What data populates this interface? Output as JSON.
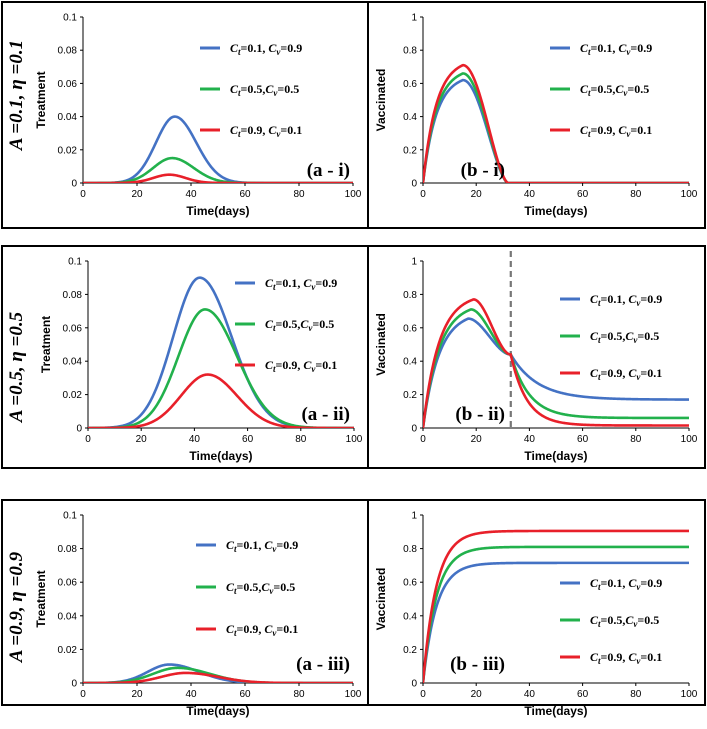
{
  "figure": {
    "colors": {
      "blue": "#4472c4",
      "green": "#22b14c",
      "red": "#e8202a",
      "dash": "#777777"
    },
    "rows": [
      {
        "label": "A =0.1, η =0.1"
      },
      {
        "label": "A =0.5, η =0.5"
      },
      {
        "label": "A =0.9, η =0.9"
      }
    ]
  },
  "chart_data": [
    {
      "id": "a-i",
      "type": "line",
      "tag": "(a - i)",
      "xlabel": "Time(days)",
      "ylabel": "Treatment",
      "xlim": [
        0,
        100
      ],
      "ylim": [
        0,
        0.1
      ],
      "xticks": [
        "0",
        "20",
        "40",
        "60",
        "80",
        "100"
      ],
      "yticks": [
        "0",
        "0.02",
        "0.04",
        "0.06",
        "0.08",
        "0.1"
      ],
      "series": [
        {
          "name": "Ct =0.1, Cv=0.9",
          "color": "blue",
          "shape": "bump",
          "peak": 0.04,
          "peak_x": 34,
          "sl": 7,
          "sr": 8
        },
        {
          "name": "Ct =0.5,Cv=0.5",
          "color": "green",
          "shape": "bump",
          "peak": 0.015,
          "peak_x": 33,
          "sl": 7,
          "sr": 8
        },
        {
          "name": "Ct =0.9, Cv =0.1",
          "color": "red",
          "shape": "bump",
          "peak": 0.005,
          "peak_x": 32,
          "sl": 6,
          "sr": 6
        }
      ],
      "legend": [
        {
          "ct": "=0.1, ",
          "cv": "=0.9"
        },
        {
          "ct": "=0.5,",
          "cv": "=0.5"
        },
        {
          "ct": "=0.9, ",
          "cv": "=0.1"
        }
      ]
    },
    {
      "id": "b-i",
      "type": "line",
      "tag": "(b - i)",
      "xlabel": "Time(days)",
      "ylabel": "Vaccinated",
      "xlim": [
        0,
        100
      ],
      "ylim": [
        0,
        1
      ],
      "xticks": [
        "0",
        "20",
        "40",
        "60",
        "80",
        "100"
      ],
      "yticks": [
        "0",
        "0.2",
        "0.4",
        "0.6",
        "0.8",
        "1"
      ],
      "series": [
        {
          "name": "Ct =0.1, Cv=0.9",
          "color": "blue",
          "shape": "rise_fall",
          "peak": 0.62,
          "peak_x": 15,
          "tau": 5,
          "end": 32
        },
        {
          "name": "Ct =0.5,Cv=0.5",
          "color": "green",
          "shape": "rise_fall",
          "peak": 0.66,
          "peak_x": 15,
          "tau": 5,
          "end": 32
        },
        {
          "name": "Ct =0.9, Cv =0.1",
          "color": "red",
          "shape": "rise_fall",
          "peak": 0.71,
          "peak_x": 15,
          "tau": 5,
          "end": 32
        }
      ],
      "legend": [
        {
          "ct": "=0.1, ",
          "cv": "=0.9"
        },
        {
          "ct": "=0.5,",
          "cv": "=0.5"
        },
        {
          "ct": "=0.9, ",
          "cv": "=0.1"
        }
      ]
    },
    {
      "id": "a-ii",
      "type": "line",
      "tag": "(a - ii)",
      "xlabel": "Time(days)",
      "ylabel": "Treatment",
      "xlim": [
        0,
        100
      ],
      "ylim": [
        0,
        0.1
      ],
      "xticks": [
        "0",
        "20",
        "40",
        "60",
        "80",
        "100"
      ],
      "yticks": [
        "0",
        "0.02",
        "0.04",
        "0.06",
        "0.08",
        "0.1"
      ],
      "series": [
        {
          "name": "Ct =0.1, Cv=0.9",
          "color": "blue",
          "shape": "bump",
          "peak": 0.09,
          "peak_x": 42,
          "sl": 10,
          "sr": 12
        },
        {
          "name": "Ct =0.5,Cv=0.5",
          "color": "green",
          "shape": "bump",
          "peak": 0.071,
          "peak_x": 44,
          "sl": 10,
          "sr": 12
        },
        {
          "name": "Ct =0.9, Cv =0.1",
          "color": "red",
          "shape": "bump",
          "peak": 0.032,
          "peak_x": 45,
          "sl": 10,
          "sr": 11
        }
      ],
      "legend": [
        {
          "ct": "=0.1, ",
          "cv": "=0.9"
        },
        {
          "ct": "=0.5,",
          "cv": "=0.5"
        },
        {
          "ct": "=0.9, ",
          "cv": "=0.1"
        }
      ]
    },
    {
      "id": "b-ii",
      "type": "line",
      "tag": "(b - ii)",
      "xlabel": "Time(days)",
      "ylabel": "Vaccinated",
      "xlim": [
        0,
        100
      ],
      "ylim": [
        0,
        1
      ],
      "xticks": [
        "0",
        "20",
        "40",
        "60",
        "80",
        "100"
      ],
      "yticks": [
        "0",
        "0.2",
        "0.4",
        "0.6",
        "0.8",
        "1"
      ],
      "vline": 33,
      "series": [
        {
          "name": "Ct =0.1, Cv=0.9",
          "color": "blue",
          "shape": "rise_decay",
          "peak": 0.655,
          "peak_x": 17,
          "tau": 6,
          "cross_x": 33,
          "cross_y": 0.44,
          "final": 0.17,
          "k": 10
        },
        {
          "name": "Ct =0.5,Cv=0.5",
          "color": "green",
          "shape": "rise_decay",
          "peak": 0.71,
          "peak_x": 18,
          "tau": 6,
          "cross_x": 33,
          "cross_y": 0.44,
          "final": 0.06,
          "k": 7
        },
        {
          "name": "Ct =0.9, Cv =0.1",
          "color": "red",
          "shape": "rise_decay",
          "peak": 0.77,
          "peak_x": 19,
          "tau": 6,
          "cross_x": 33,
          "cross_y": 0.44,
          "final": 0.015,
          "k": 6
        }
      ],
      "legend": [
        {
          "ct": "=0.1, ",
          "cv": "=0.9"
        },
        {
          "ct": "=0.5,",
          "cv": "=0.5"
        },
        {
          "ct": "=0.9, ",
          "cv": "=0.1"
        }
      ]
    },
    {
      "id": "a-iii",
      "type": "line",
      "tag": "(a - iii)",
      "xlabel": "Time(days)",
      "ylabel": "Treatment",
      "xlim": [
        0,
        100
      ],
      "ylim": [
        0,
        0.1
      ],
      "xticks": [
        "0",
        "20",
        "40",
        "60",
        "80",
        "100"
      ],
      "yticks": [
        "0",
        "0.02",
        "0.04",
        "0.06",
        "0.08",
        "0.1"
      ],
      "series": [
        {
          "name": "Ct =0.1, Cv=0.9",
          "color": "blue",
          "shape": "bump",
          "peak": 0.011,
          "peak_x": 32,
          "sl": 8,
          "sr": 11
        },
        {
          "name": "Ct =0.5,Cv=0.5",
          "color": "green",
          "shape": "bump",
          "peak": 0.009,
          "peak_x": 35,
          "sl": 9,
          "sr": 12
        },
        {
          "name": "Ct =0.9, Cv =0.1",
          "color": "red",
          "shape": "bump",
          "peak": 0.006,
          "peak_x": 38,
          "sl": 9,
          "sr": 12
        }
      ],
      "legend": [
        {
          "ct": "=0.1, ",
          "cv": "=0.9"
        },
        {
          "ct": "=0.5,",
          "cv": "=0.5"
        },
        {
          "ct": "=0.9, ",
          "cv": "=0.1"
        }
      ]
    },
    {
      "id": "b-iii",
      "type": "line",
      "tag": "(b - iii)",
      "xlabel": "Time(days)",
      "ylabel": "Vaccinated",
      "xlim": [
        0,
        100
      ],
      "ylim": [
        0,
        1
      ],
      "xticks": [
        "0",
        "20",
        "40",
        "60",
        "80",
        "100"
      ],
      "yticks": [
        "0",
        "0.2",
        "0.4",
        "0.6",
        "0.8",
        "1"
      ],
      "series": [
        {
          "name": "Ct =0.1, Cv=0.9",
          "color": "blue",
          "shape": "saturate",
          "final": 0.715,
          "tau": 5
        },
        {
          "name": "Ct =0.5,Cv=0.5",
          "color": "green",
          "shape": "saturate",
          "final": 0.81,
          "tau": 5
        },
        {
          "name": "Ct =0.9, Cv =0.1",
          "color": "red",
          "shape": "saturate",
          "final": 0.905,
          "tau": 5
        }
      ],
      "legend": [
        {
          "ct": "=0.1, ",
          "cv": "=0.9"
        },
        {
          "ct": "=0.5,",
          "cv": "=0.5"
        },
        {
          "ct": "=0.9, ",
          "cv": "=0.1"
        }
      ]
    }
  ]
}
